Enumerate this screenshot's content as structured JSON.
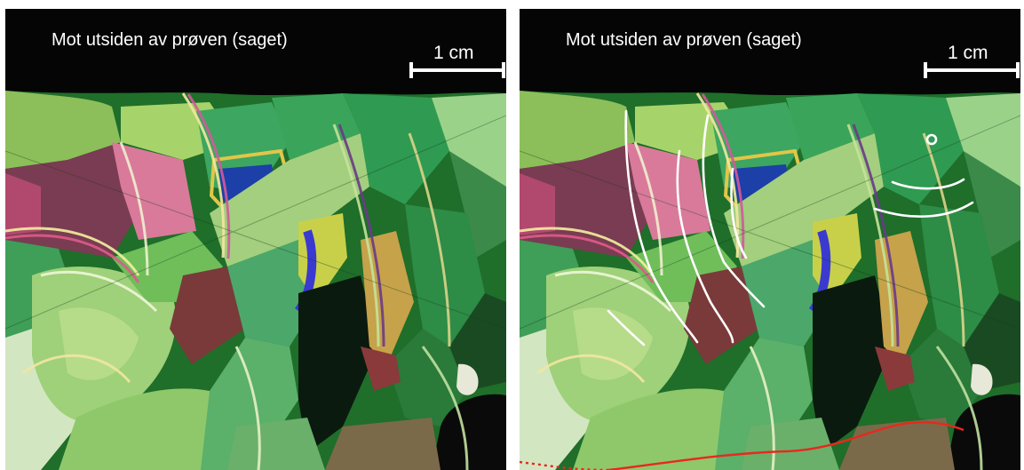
{
  "panels": [
    {
      "caption": "Mot utsiden av prøven (saget)",
      "scale_label": "1 cm",
      "annotated": false
    },
    {
      "caption": "Mot utsiden av prøven (saget)",
      "scale_label": "1 cm",
      "annotated": true,
      "annotation_colors": {
        "lines": "#ffffff",
        "boundary": "#e8281e"
      }
    }
  ],
  "colors": {
    "frame": "#ffffff",
    "background_top": "#000000"
  }
}
